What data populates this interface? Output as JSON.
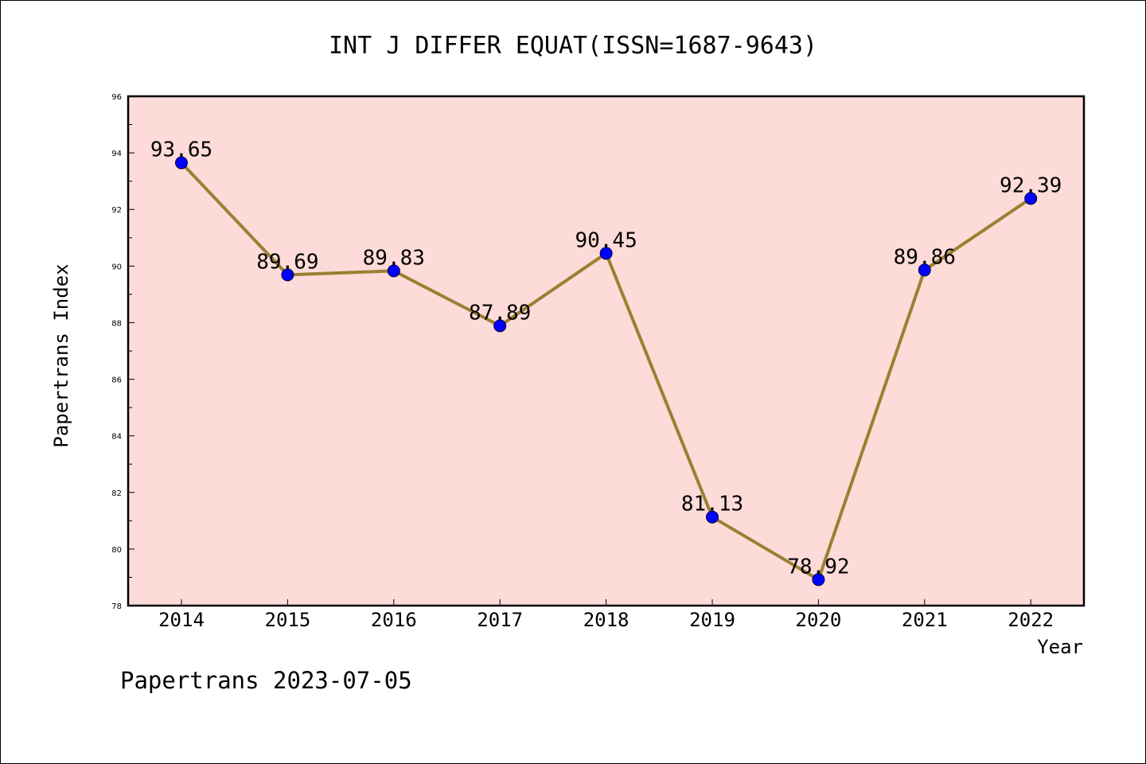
{
  "chart_data": {
    "type": "line",
    "title": "INT J DIFFER EQUAT(ISSN=1687-9643)",
    "xlabel": "Year",
    "ylabel": "Papertrans Index",
    "categories": [
      "2014",
      "2015",
      "2016",
      "2017",
      "2018",
      "2019",
      "2020",
      "2021",
      "2022"
    ],
    "series": [
      {
        "values": [
          93.65,
          89.69,
          89.83,
          87.89,
          90.45,
          81.13,
          78.92,
          89.86,
          92.39
        ],
        "labels": [
          "93.65",
          "89.69",
          "89.83",
          "87.89",
          "90.45",
          "81.13",
          "78.92",
          "89.86",
          "92.39"
        ],
        "line_color": "#9a8033",
        "marker_color": "#0000ff"
      }
    ],
    "ylim": [
      78,
      96
    ],
    "yticks": [
      "78",
      "80",
      "82",
      "84",
      "86",
      "88",
      "90",
      "92",
      "94",
      "96"
    ],
    "plot_background": "#fddbd8",
    "grid": false,
    "legend": "none"
  },
  "footer": {
    "text": "Papertrans 2023-07-05"
  }
}
